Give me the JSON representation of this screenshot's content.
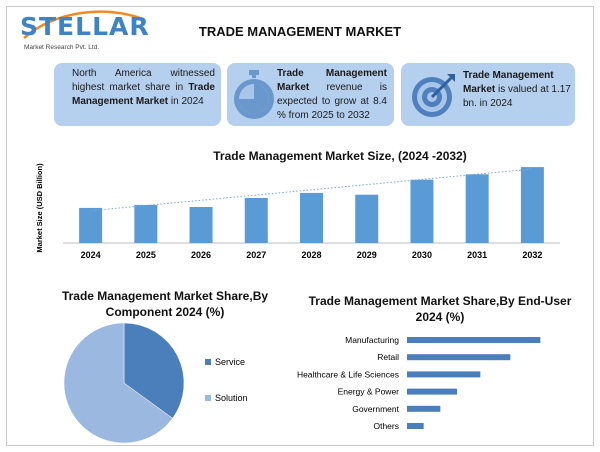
{
  "logo": {
    "name": "STELLAR",
    "tagline": "Market Research Pvt. Ltd."
  },
  "title": "TRADE MANAGEMENT MARKET",
  "cards": [
    {
      "pre": "North America witnessed highest market share in ",
      "bold": "Trade Management Market",
      "post": " in 2024"
    },
    {
      "pre": "",
      "bold": "Trade Management Market",
      "post": " revenue is expected to grow at 8.4 % from 2025 to 2032",
      "icon": "stopwatch-icon"
    },
    {
      "pre": "",
      "bold": "Trade Management Market",
      "post": " is valued at 1.17 bn. in 2024",
      "icon": "target-icon"
    }
  ],
  "colors": {
    "accent": "#5b9bd5",
    "card_bg": "#b5cfee",
    "pie_service": "#4a7fbc",
    "pie_solution": "#9bb8e0"
  },
  "chart_data": [
    {
      "type": "bar",
      "title": "Trade Management Market Size, (2024 -2032)",
      "ylabel": "Market Size (USD Billion)",
      "xlabel": "",
      "categories": [
        "2024",
        "2025",
        "2026",
        "2027",
        "2028",
        "2029",
        "2030",
        "2031",
        "2032"
      ],
      "values": [
        1.17,
        1.27,
        1.2,
        1.5,
        1.67,
        1.61,
        2.11,
        2.29,
        2.53
      ],
      "ylim": [
        0,
        3.0
      ],
      "trendline": true,
      "grid": false
    },
    {
      "type": "pie",
      "title": "Trade Management Market Share,By Component 2024 (%)",
      "labels": [
        "Service",
        "Solution"
      ],
      "values": [
        35,
        65
      ],
      "legend": "right"
    },
    {
      "type": "bar",
      "orientation": "horizontal",
      "title": "Trade Management Market Share,By End-User 2024  (%)",
      "categories": [
        "Manufacturing",
        "Retail",
        "Healthcare & Life Sciences",
        "Energy & Power",
        "Government",
        "Others"
      ],
      "values": [
        40,
        31,
        22,
        15,
        10,
        5
      ],
      "xlim": [
        0,
        45
      ]
    }
  ]
}
